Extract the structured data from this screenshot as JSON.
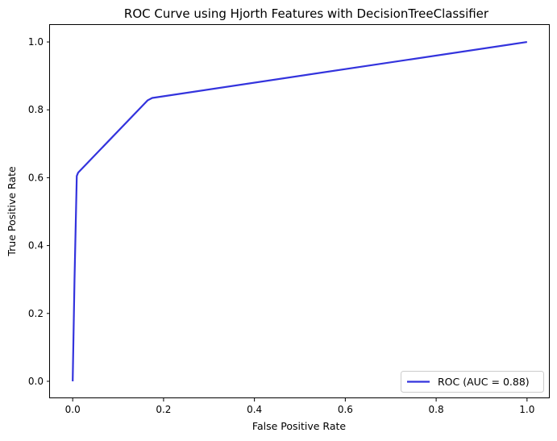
{
  "chart_data": {
    "type": "line",
    "title": "ROC Curve using Hjorth Features with DecisionTreeClassifier",
    "xlabel": "False Positive Rate",
    "ylabel": "True Positive Rate",
    "xlim": [
      -0.05,
      1.05
    ],
    "ylim": [
      -0.05,
      1.05
    ],
    "xticks": [
      0.0,
      0.2,
      0.4,
      0.6,
      0.8,
      1.0
    ],
    "yticks": [
      0.0,
      0.2,
      0.4,
      0.6,
      0.8,
      1.0
    ],
    "xtick_labels": [
      "0.0",
      "0.2",
      "0.4",
      "0.6",
      "0.8",
      "1.0"
    ],
    "ytick_labels": [
      "0.0",
      "0.2",
      "0.4",
      "0.6",
      "0.8",
      "1.0"
    ],
    "grid": false,
    "legend_position": "lower-right",
    "series": [
      {
        "name": "ROC (AUC = 0.88)",
        "color": "#3333dd",
        "x": [
          0.0,
          0.004,
          0.009,
          0.012,
          0.165,
          0.175,
          1.0
        ],
        "y": [
          0.0,
          0.3,
          0.605,
          0.615,
          0.828,
          0.835,
          1.0
        ]
      }
    ]
  }
}
